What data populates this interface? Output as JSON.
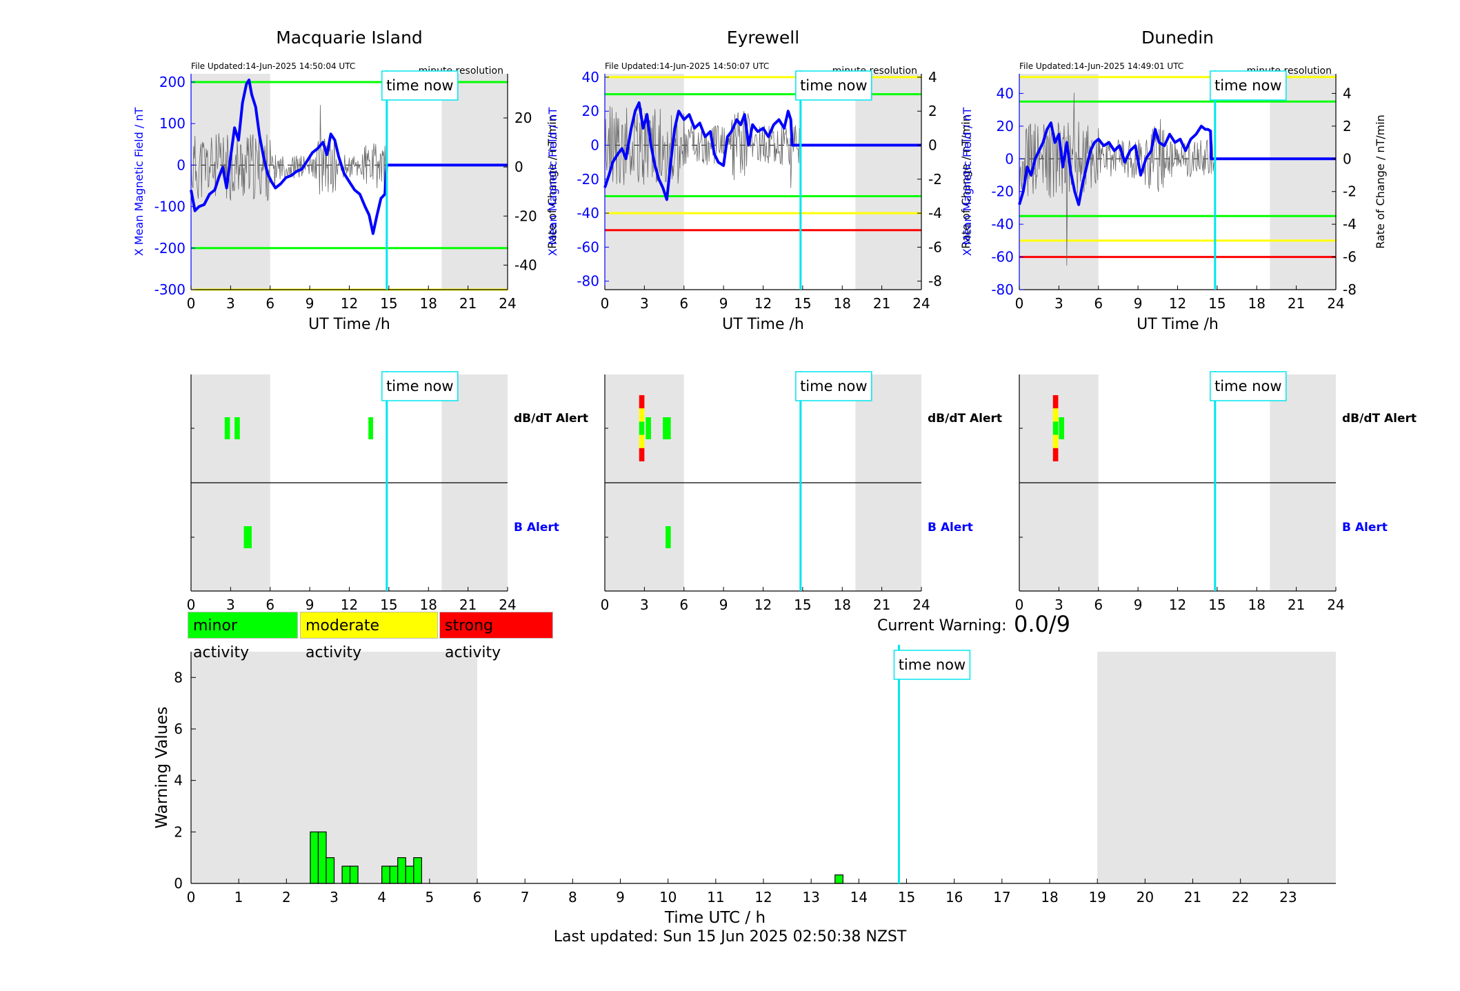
{
  "colors": {
    "blue": "#0000ff",
    "cyan": "#00e5ee",
    "green": "#00ff00",
    "yellow": "#ffff00",
    "red": "#ff0000",
    "shade": "#e5e5e5",
    "gray_trace": "#666666"
  },
  "time_now_label": "time now",
  "panels": [
    {
      "station": "Macquarie Island",
      "file_updated": "File Updated:14-Jun-2025 14:50:04 UTC",
      "resolution": "minute resolution",
      "ylabel_left": "X Mean Magnetic Field / nT",
      "ylabel_right": "Rate of Change / nT/min",
      "xlabel": "UT Time /h",
      "ylim_left": [
        -300,
        220
      ],
      "yticks_left": [
        -300,
        -200,
        -100,
        0,
        100,
        200
      ],
      "ylim_right": [
        -50,
        38
      ],
      "yticks_right": [
        -40,
        -20,
        0,
        20
      ],
      "xticks": [
        0,
        3,
        6,
        9,
        12,
        15,
        18,
        21,
        24
      ],
      "shade": [
        [
          0,
          6
        ],
        [
          19,
          24
        ]
      ],
      "time_now": 14.84,
      "hlines": [
        {
          "value": 200,
          "color": "green"
        },
        {
          "value": -200,
          "color": "green"
        },
        {
          "value": -300,
          "color": "yellow"
        }
      ],
      "field_series": [
        [
          0,
          -60
        ],
        [
          0.3,
          -110
        ],
        [
          0.6,
          -100
        ],
        [
          1,
          -95
        ],
        [
          1.4,
          -70
        ],
        [
          1.8,
          -60
        ],
        [
          2.1,
          -30
        ],
        [
          2.4,
          -5
        ],
        [
          2.7,
          -55
        ],
        [
          3,
          20
        ],
        [
          3.3,
          90
        ],
        [
          3.6,
          60
        ],
        [
          3.9,
          150
        ],
        [
          4.2,
          195
        ],
        [
          4.4,
          205
        ],
        [
          4.6,
          170
        ],
        [
          4.9,
          140
        ],
        [
          5.2,
          70
        ],
        [
          5.5,
          20
        ],
        [
          5.8,
          -20
        ],
        [
          6.1,
          -40
        ],
        [
          6.4,
          -55
        ],
        [
          6.8,
          -45
        ],
        [
          7.2,
          -30
        ],
        [
          7.6,
          -25
        ],
        [
          8,
          -15
        ],
        [
          8.4,
          -10
        ],
        [
          8.8,
          10
        ],
        [
          9.2,
          30
        ],
        [
          9.6,
          40
        ],
        [
          10,
          55
        ],
        [
          10.3,
          25
        ],
        [
          10.6,
          75
        ],
        [
          10.9,
          60
        ],
        [
          11.2,
          20
        ],
        [
          11.6,
          -20
        ],
        [
          12,
          -40
        ],
        [
          12.4,
          -60
        ],
        [
          12.8,
          -70
        ],
        [
          13.2,
          -100
        ],
        [
          13.5,
          -120
        ],
        [
          13.8,
          -165
        ],
        [
          14.1,
          -120
        ],
        [
          14.4,
          -80
        ],
        [
          14.7,
          -70
        ],
        [
          14.84,
          0
        ],
        [
          24,
          0
        ]
      ],
      "rate_amplitude": 60,
      "dbdt_alerts": [
        {
          "t0": 2.55,
          "t1": 2.95,
          "levels": [
            "green"
          ]
        },
        {
          "t0": 3.3,
          "t1": 3.7,
          "levels": [
            "green"
          ]
        },
        {
          "t0": 13.45,
          "t1": 13.8,
          "levels": [
            "green"
          ]
        }
      ],
      "b_alerts": [
        {
          "t0": 4.0,
          "t1": 4.6,
          "levels": [
            "green"
          ]
        }
      ],
      "dbdt_label": "dB/dT Alert",
      "b_label": "B Alert"
    },
    {
      "station": "Eyrewell",
      "file_updated": "File Updated:14-Jun-2025 14:50:07 UTC",
      "resolution": "minute resolution",
      "ylabel_left": "X Mean Magnetic Field / nT",
      "ylabel_right": "Rate of Change / nT/min",
      "xlabel": "UT Time /h",
      "ylim_left": [
        -85,
        42
      ],
      "yticks_left": [
        -80,
        -60,
        -40,
        -20,
        0,
        20,
        40
      ],
      "ylim_right": [
        -8.5,
        4.2
      ],
      "yticks_right": [
        -8,
        -6,
        -4,
        -2,
        0,
        2,
        4
      ],
      "xticks": [
        0,
        3,
        6,
        9,
        12,
        15,
        18,
        21,
        24
      ],
      "shade": [
        [
          0,
          6
        ],
        [
          19,
          24
        ]
      ],
      "time_now": 14.84,
      "hlines": [
        {
          "value": 40,
          "color": "yellow"
        },
        {
          "value": 30,
          "color": "green"
        },
        {
          "value": -30,
          "color": "green"
        },
        {
          "value": -40,
          "color": "yellow"
        },
        {
          "value": -50,
          "color": "red"
        }
      ],
      "field_series": [
        [
          0,
          -25
        ],
        [
          0.3,
          -18
        ],
        [
          0.6,
          -10
        ],
        [
          1,
          -5
        ],
        [
          1.3,
          -2
        ],
        [
          1.6,
          -8
        ],
        [
          2,
          10
        ],
        [
          2.3,
          20
        ],
        [
          2.6,
          25
        ],
        [
          2.9,
          10
        ],
        [
          3.2,
          18
        ],
        [
          3.5,
          0
        ],
        [
          3.8,
          -12
        ],
        [
          4.1,
          -20
        ],
        [
          4.4,
          -25
        ],
        [
          4.7,
          -32
        ],
        [
          5,
          -10
        ],
        [
          5.3,
          10
        ],
        [
          5.6,
          20
        ],
        [
          6,
          15
        ],
        [
          6.4,
          18
        ],
        [
          6.8,
          10
        ],
        [
          7.2,
          13
        ],
        [
          7.6,
          5
        ],
        [
          8,
          8
        ],
        [
          8.3,
          -5
        ],
        [
          8.6,
          -10
        ],
        [
          9,
          -12
        ],
        [
          9.3,
          5
        ],
        [
          9.6,
          8
        ],
        [
          10,
          15
        ],
        [
          10.3,
          12
        ],
        [
          10.6,
          18
        ],
        [
          10.9,
          0
        ],
        [
          11.2,
          12
        ],
        [
          11.6,
          8
        ],
        [
          12,
          10
        ],
        [
          12.4,
          5
        ],
        [
          12.8,
          12
        ],
        [
          13.2,
          15
        ],
        [
          13.6,
          10
        ],
        [
          13.9,
          20
        ],
        [
          14.1,
          15
        ],
        [
          14.2,
          0
        ],
        [
          24,
          0
        ]
      ],
      "rate_amplitude": 1.5,
      "dbdt_alerts": [
        {
          "t0": 2.6,
          "t1": 3.0,
          "levels": [
            "red",
            "yellow",
            "green",
            "yellow",
            "red"
          ]
        },
        {
          "t0": 3.1,
          "t1": 3.5,
          "levels": [
            "green"
          ]
        },
        {
          "t0": 4.4,
          "t1": 5.0,
          "levels": [
            "green"
          ]
        }
      ],
      "b_alerts": [
        {
          "t0": 4.6,
          "t1": 5.0,
          "levels": [
            "green"
          ]
        }
      ],
      "dbdt_label": "dB/dT Alert",
      "b_label": "B Alert"
    },
    {
      "station": "Dunedin",
      "file_updated": "File Updated:14-Jun-2025 14:49:01 UTC",
      "resolution": "minute resolution",
      "ylabel_left": "X Mean Magnetic Field / nT",
      "ylabel_right": "Rate of Change / nT/min",
      "xlabel": "UT Time /h",
      "ylim_left": [
        -80,
        52
      ],
      "yticks_left": [
        -80,
        -60,
        -40,
        -20,
        0,
        20,
        40
      ],
      "ylim_right": [
        -8,
        5.2
      ],
      "yticks_right": [
        -8,
        -6,
        -4,
        -2,
        0,
        2,
        4
      ],
      "xticks": [
        0,
        3,
        6,
        9,
        12,
        15,
        18,
        21,
        24
      ],
      "shade": [
        [
          0,
          6
        ],
        [
          19,
          24
        ]
      ],
      "time_now": 14.84,
      "hlines": [
        {
          "value": 50,
          "color": "yellow"
        },
        {
          "value": 35,
          "color": "green"
        },
        {
          "value": -35,
          "color": "green"
        },
        {
          "value": -50,
          "color": "yellow"
        },
        {
          "value": -60,
          "color": "red"
        }
      ],
      "field_series": [
        [
          0,
          -28
        ],
        [
          0.3,
          -20
        ],
        [
          0.6,
          -5
        ],
        [
          0.9,
          -10
        ],
        [
          1.2,
          0
        ],
        [
          1.5,
          5
        ],
        [
          1.8,
          10
        ],
        [
          2.1,
          18
        ],
        [
          2.4,
          22
        ],
        [
          2.7,
          10
        ],
        [
          3,
          15
        ],
        [
          3.3,
          -5
        ],
        [
          3.6,
          10
        ],
        [
          3.9,
          -8
        ],
        [
          4.2,
          -20
        ],
        [
          4.5,
          -28
        ],
        [
          4.8,
          -15
        ],
        [
          5.1,
          -5
        ],
        [
          5.4,
          5
        ],
        [
          5.7,
          10
        ],
        [
          6,
          12
        ],
        [
          6.4,
          8
        ],
        [
          6.8,
          10
        ],
        [
          7.2,
          5
        ],
        [
          7.6,
          8
        ],
        [
          8,
          -2
        ],
        [
          8.4,
          5
        ],
        [
          8.8,
          8
        ],
        [
          9.2,
          -10
        ],
        [
          9.6,
          0
        ],
        [
          10,
          5
        ],
        [
          10.3,
          18
        ],
        [
          10.6,
          10
        ],
        [
          11,
          8
        ],
        [
          11.4,
          15
        ],
        [
          11.8,
          10
        ],
        [
          12.2,
          12
        ],
        [
          12.6,
          5
        ],
        [
          13,
          12
        ],
        [
          13.4,
          15
        ],
        [
          13.8,
          20
        ],
        [
          14.1,
          18
        ],
        [
          14.3,
          18
        ],
        [
          14.5,
          17
        ],
        [
          14.55,
          0
        ],
        [
          24,
          0
        ]
      ],
      "rate_amplitude": 1.5,
      "dbdt_alerts": [
        {
          "t0": 2.55,
          "t1": 2.95,
          "levels": [
            "red",
            "yellow",
            "green",
            "yellow",
            "red"
          ]
        },
        {
          "t0": 3.0,
          "t1": 3.4,
          "levels": [
            "green"
          ]
        }
      ],
      "b_alerts": [],
      "dbdt_label": "dB/dT Alert",
      "b_label": "B Alert"
    }
  ],
  "legend": {
    "minor": "minor activity",
    "moderate": "moderate activity",
    "strong": "strong activity"
  },
  "current_warning": {
    "label": "Current Warning:",
    "value": "0.0/9"
  },
  "chart_data": {
    "type": "bar",
    "title": "",
    "xlabel": "Time UTC / h",
    "ylabel": "Warning Values",
    "xlim": [
      0,
      24
    ],
    "ylim": [
      0,
      9
    ],
    "xticks": [
      0,
      1,
      2,
      3,
      4,
      5,
      6,
      7,
      8,
      9,
      10,
      11,
      12,
      13,
      14,
      15,
      16,
      17,
      18,
      19,
      20,
      21,
      22,
      23
    ],
    "yticks": [
      0,
      2,
      4,
      6,
      8
    ],
    "shade": [
      [
        0,
        6
      ],
      [
        19,
        24
      ]
    ],
    "time_now": 14.84,
    "bars": [
      {
        "x": 2.5,
        "width": 0.167,
        "value": 2
      },
      {
        "x": 2.667,
        "width": 0.167,
        "value": 2
      },
      {
        "x": 2.833,
        "width": 0.167,
        "value": 1
      },
      {
        "x": 3.167,
        "width": 0.167,
        "value": 0.67
      },
      {
        "x": 3.333,
        "width": 0.167,
        "value": 0.67
      },
      {
        "x": 4.0,
        "width": 0.167,
        "value": 0.67
      },
      {
        "x": 4.167,
        "width": 0.167,
        "value": 0.67
      },
      {
        "x": 4.333,
        "width": 0.167,
        "value": 1
      },
      {
        "x": 4.5,
        "width": 0.167,
        "value": 0.67
      },
      {
        "x": 4.667,
        "width": 0.167,
        "value": 1
      },
      {
        "x": 13.5,
        "width": 0.167,
        "value": 0.33
      }
    ]
  },
  "footer": "Last updated: Sun 15 Jun 2025 02:50:38 NZST"
}
